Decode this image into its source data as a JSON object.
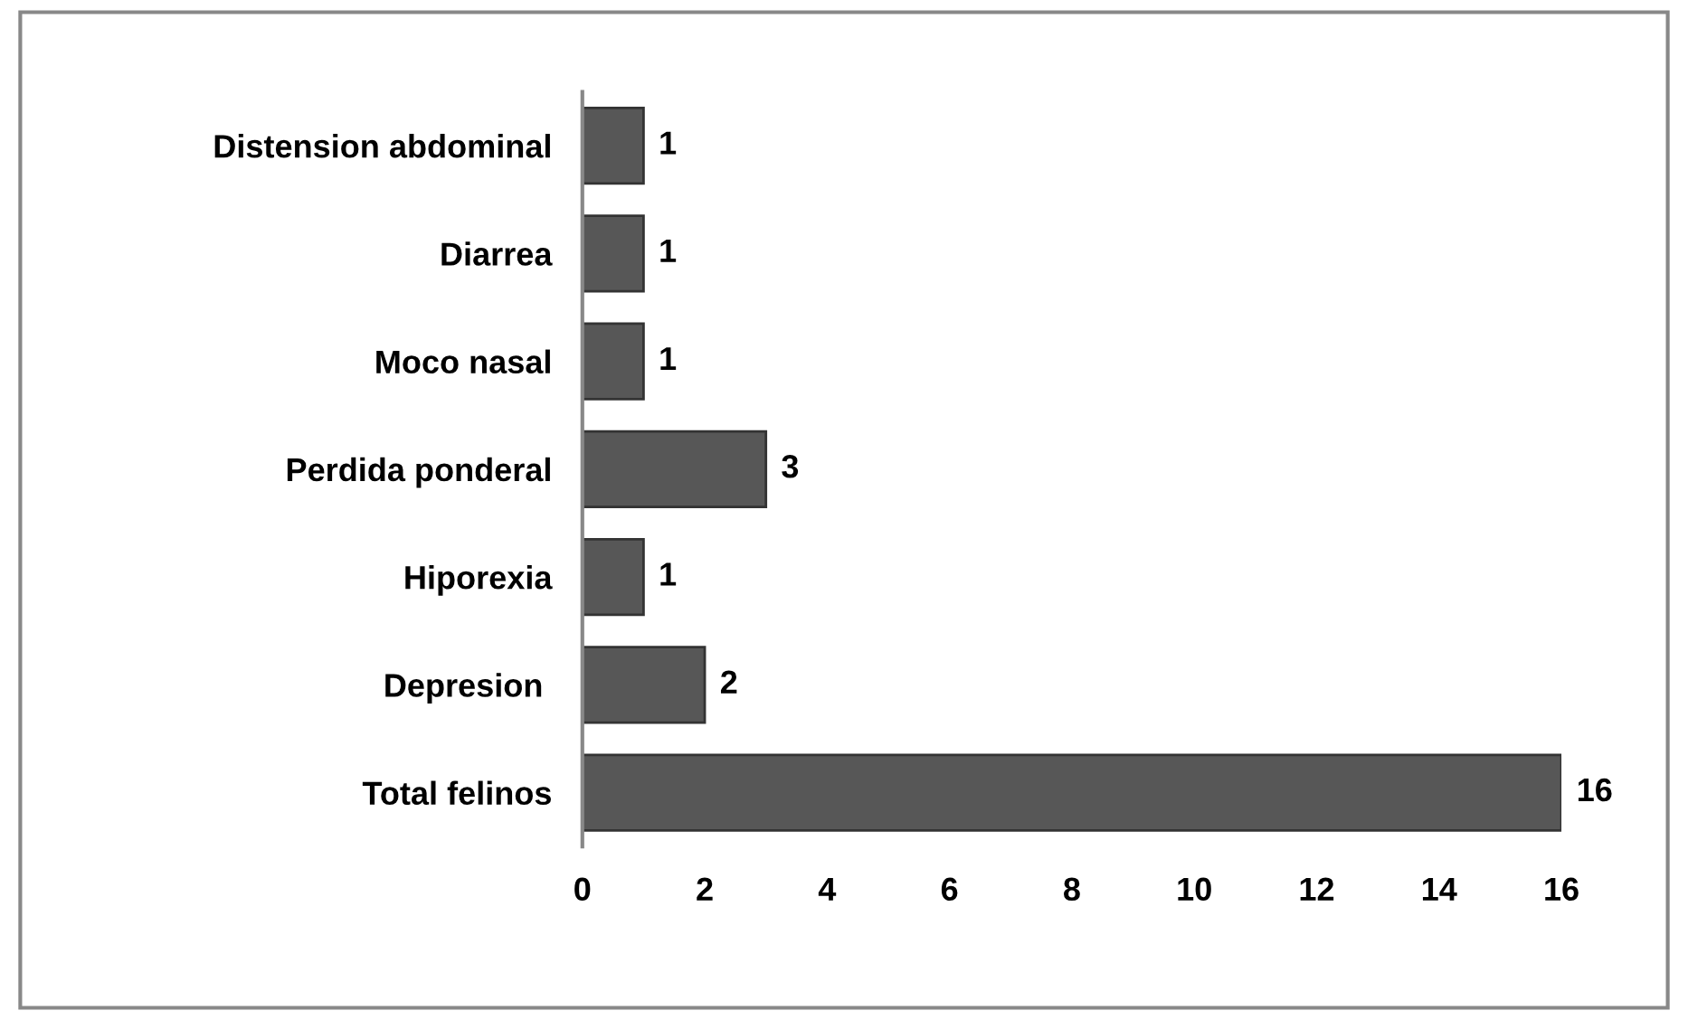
{
  "chart_data": {
    "type": "bar",
    "orientation": "horizontal",
    "categories": [
      "Distension abdominal",
      "Diarrea",
      "Moco nasal",
      "Perdida ponderal",
      "Hiporexia",
      "Depresion ",
      "Total felinos"
    ],
    "values": [
      1,
      1,
      1,
      3,
      1,
      2,
      16
    ],
    "color": "#575757",
    "xlim": [
      0,
      16
    ],
    "xticks": [
      0,
      2,
      4,
      6,
      8,
      10,
      12,
      14,
      16
    ],
    "grid": false,
    "data_labels": true
  }
}
